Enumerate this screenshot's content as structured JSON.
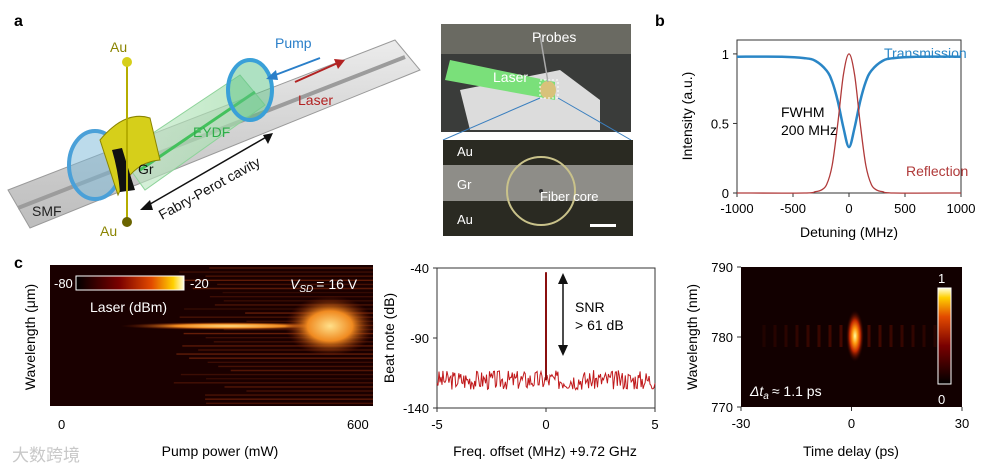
{
  "panel_labels": {
    "a": "a",
    "b": "b",
    "c": "c"
  },
  "schematic": {
    "au_top": "Au",
    "au_bottom": "Au",
    "pump": "Pump",
    "laser": "Laser",
    "eydf": "EYDF",
    "gr": "Gr",
    "smf": "SMF",
    "cavity": "Fabry-Perot cavity",
    "colors": {
      "au": "#b5ad00",
      "pump": "#2a7fc9",
      "laser": "#b22222",
      "eydf": "#2fae4a"
    }
  },
  "photo": {
    "probes": "Probes",
    "laser": "Laser"
  },
  "micrograph": {
    "au1": "Au",
    "gr": "Gr",
    "au2": "Au",
    "core": "Fiber core"
  },
  "chart_data": [
    {
      "type": "line",
      "title": "",
      "xlabel": "Detuning (MHz)",
      "ylabel": "Intensity (a.u.)",
      "xlim": [
        -1000,
        1000
      ],
      "ylim": [
        0,
        1.1
      ],
      "xticks": [
        "-1000",
        "-500",
        "0",
        "500",
        "1000"
      ],
      "yticks": [
        "0",
        "0.5",
        "1"
      ],
      "annotation": "FWHM",
      "annotation2": "200 MHz",
      "series": [
        {
          "name": "Transmission",
          "color": "#2a86c6",
          "x": [
            -1000,
            -600,
            -400,
            -300,
            -200,
            -150,
            -100,
            -50,
            0,
            50,
            100,
            150,
            200,
            300,
            400,
            600,
            1000
          ],
          "values": [
            0.98,
            0.98,
            0.97,
            0.95,
            0.88,
            0.8,
            0.66,
            0.47,
            0.33,
            0.47,
            0.66,
            0.8,
            0.88,
            0.95,
            0.97,
            0.98,
            0.98
          ]
        },
        {
          "name": "Reflection",
          "color": "#b03a3a",
          "x": [
            -1000,
            -400,
            -300,
            -250,
            -200,
            -150,
            -100,
            -50,
            0,
            50,
            100,
            150,
            200,
            250,
            300,
            400,
            1000
          ],
          "values": [
            0,
            0,
            0.01,
            0.02,
            0.06,
            0.2,
            0.5,
            0.85,
            1.0,
            0.85,
            0.5,
            0.2,
            0.06,
            0.02,
            0.01,
            0,
            0
          ]
        }
      ]
    },
    {
      "type": "heatmap",
      "title": "",
      "xlabel": "Pump power (mW)",
      "ylabel": "Wavelength (μm)",
      "xticks": [
        "0",
        "600"
      ],
      "colorbar_min": "-80",
      "colorbar_max": "-20",
      "legend": "Laser (dBm)",
      "vsd": "V",
      "vsd_sub": "SD",
      "vsd_val": "= 16 V"
    },
    {
      "type": "line",
      "title": "",
      "xlabel": "Freq. offset (MHz) +9.72 GHz",
      "ylabel": "Beat note (dB)",
      "xlim": [
        -5,
        5
      ],
      "ylim": [
        -140,
        -40
      ],
      "xticks": [
        "-5",
        "0",
        "5"
      ],
      "yticks": [
        "-40",
        "-90",
        "-140"
      ],
      "annotation": "SNR",
      "annotation2": "> 61 dB",
      "series": [
        {
          "name": "Beat note",
          "color": "#c0181a",
          "noise_floor": -120,
          "peak_x": 0,
          "peak_y": -43
        }
      ]
    },
    {
      "type": "heatmap",
      "title": "",
      "xlabel": "Time delay (ps)",
      "ylabel": "Wavelength (nm)",
      "xticks": [
        "-30",
        "0",
        "30"
      ],
      "yticks": [
        "790",
        "780",
        "770"
      ],
      "colorbar_min": "0",
      "colorbar_max": "1",
      "annotation": "Δt",
      "annotation_sub": "a",
      "annotation_val": "≈ 1.1 ps"
    }
  ],
  "watermark": "大数跨境"
}
